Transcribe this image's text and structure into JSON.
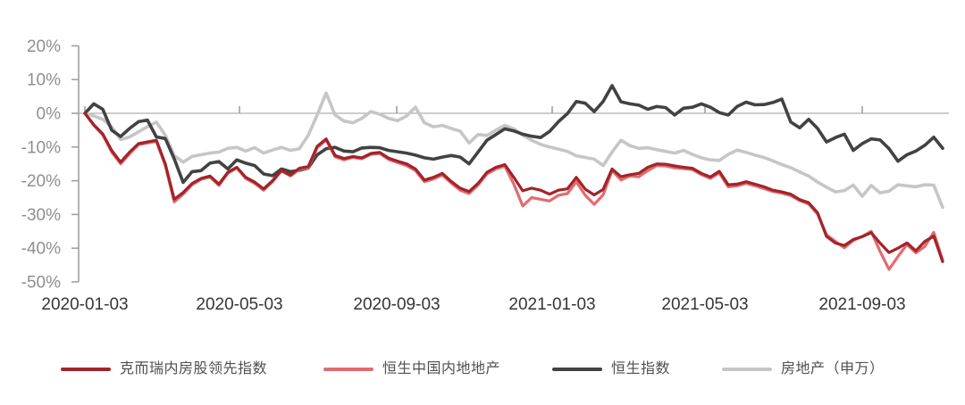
{
  "chart_data": {
    "type": "line",
    "title": "",
    "x_axis": {
      "tick_labels": [
        "2020-01-03",
        "2020-05-03",
        "2020-09-03",
        "2021-01-03",
        "2021-05-03",
        "2021-09-03"
      ],
      "tick_week_positions": [
        0,
        17.3,
        34.9,
        52.3,
        69.4,
        87.0
      ],
      "frequency": "weekly",
      "points_per_series": 97
    },
    "y_axis": {
      "tick_labels": [
        "20%",
        "10%",
        "0%",
        "-10%",
        "-20%",
        "-30%",
        "-40%",
        "-50%"
      ],
      "tick_values": [
        20,
        10,
        0,
        -10,
        -20,
        -30,
        -40,
        -50
      ],
      "ylim": [
        -50,
        20
      ],
      "unit": "%"
    },
    "grid": "zero-line-only",
    "legend_position": "bottom",
    "series": [
      {
        "name": "克而瑞内房股领先指数",
        "color": "#a1242a",
        "values": [
          0,
          -3.4,
          -6.1,
          -11.0,
          -14.5,
          -11.5,
          -9.0,
          -8.5,
          -8.0,
          -15.0,
          -25.5,
          -23.5,
          -20.8,
          -19.3,
          -18.6,
          -21.0,
          -17.5,
          -16.0,
          -19.0,
          -20.4,
          -22.4,
          -20.0,
          -16.9,
          -18.3,
          -16.3,
          -15.8,
          -9.8,
          -7.6,
          -12.5,
          -13.4,
          -12.8,
          -13.2,
          -11.9,
          -11.6,
          -13.3,
          -14.2,
          -15.0,
          -16.5,
          -19.8,
          -19.0,
          -17.8,
          -20.2,
          -22.2,
          -23.2,
          -20.8,
          -17.5,
          -16.0,
          -15.2,
          -19.0,
          -23.0,
          -22.2,
          -22.8,
          -24.0,
          -22.8,
          -22.4,
          -19.0,
          -22.5,
          -24.2,
          -22.6,
          -16.5,
          -18.8,
          -18.2,
          -17.8,
          -16.0,
          -15.0,
          -15.1,
          -15.6,
          -16.0,
          -16.3,
          -17.8,
          -18.9,
          -17.2,
          -21.2,
          -21.0,
          -20.3,
          -21.0,
          -21.8,
          -22.8,
          -23.3,
          -24.0,
          -25.6,
          -26.5,
          -29.5,
          -36.5,
          -38.5,
          -39.2,
          -37.4,
          -36.6,
          -35.4,
          -38.5,
          -41.3,
          -40.0,
          -38.4,
          -40.8,
          -38.0,
          -36.4,
          -44.0
        ]
      },
      {
        "name": "恒生中国内地地产",
        "color": "#e26b70",
        "values": [
          0,
          -3.6,
          -6.4,
          -11.5,
          -15.0,
          -12.0,
          -9.3,
          -8.8,
          -8.3,
          -15.5,
          -26.3,
          -24.0,
          -21.2,
          -19.6,
          -18.9,
          -21.4,
          -17.8,
          -16.2,
          -19.3,
          -20.8,
          -22.8,
          -20.3,
          -17.1,
          -18.6,
          -16.6,
          -16.1,
          -10.2,
          -7.9,
          -12.9,
          -13.8,
          -13.1,
          -13.5,
          -12.2,
          -11.9,
          -13.7,
          -14.6,
          -15.5,
          -17.0,
          -20.3,
          -19.5,
          -18.3,
          -20.7,
          -22.8,
          -23.8,
          -21.3,
          -18.0,
          -16.5,
          -15.7,
          -21.0,
          -27.5,
          -25.0,
          -25.5,
          -26.0,
          -24.3,
          -23.8,
          -20.3,
          -24.3,
          -27.0,
          -24.2,
          -17.0,
          -19.8,
          -18.6,
          -18.8,
          -17.0,
          -15.5,
          -15.6,
          -16.2,
          -16.4,
          -16.7,
          -18.2,
          -19.3,
          -17.7,
          -21.8,
          -21.5,
          -20.8,
          -21.5,
          -22.3,
          -23.2,
          -23.7,
          -24.4,
          -25.9,
          -26.9,
          -29.9,
          -36.0,
          -38.0,
          -39.9,
          -37.7,
          -36.5,
          -35.0,
          -41.0,
          -46.3,
          -42.5,
          -38.9,
          -41.4,
          -39.5,
          -35.3,
          -43.6
        ]
      },
      {
        "name": "恒生指数",
        "color": "#424242",
        "values": [
          0,
          2.8,
          1.2,
          -5.0,
          -6.9,
          -4.5,
          -2.5,
          -2.0,
          -7.0,
          -7.5,
          -13.5,
          -20.5,
          -17.3,
          -17.0,
          -14.8,
          -14.3,
          -16.5,
          -13.8,
          -14.8,
          -15.5,
          -18.0,
          -18.5,
          -16.5,
          -17.3,
          -16.9,
          -16.2,
          -12.3,
          -10.5,
          -10.1,
          -11.2,
          -11.4,
          -10.3,
          -10.1,
          -10.2,
          -11.0,
          -11.4,
          -11.8,
          -12.4,
          -13.2,
          -13.6,
          -13.0,
          -12.5,
          -13.0,
          -15.0,
          -11.5,
          -8.0,
          -6.3,
          -4.6,
          -5.2,
          -6.2,
          -6.8,
          -7.2,
          -5.4,
          -2.5,
          -0.1,
          3.5,
          3.0,
          0.5,
          3.5,
          8.2,
          3.4,
          2.8,
          2.4,
          1.2,
          2.0,
          1.7,
          -0.5,
          1.5,
          1.8,
          2.8,
          1.8,
          0.2,
          -0.5,
          2.0,
          3.3,
          2.5,
          2.6,
          3.2,
          4.2,
          -2.6,
          -4.3,
          -1.8,
          -4.5,
          -8.5,
          -7.2,
          -6.2,
          -11.0,
          -9.0,
          -7.6,
          -7.9,
          -10.5,
          -14.2,
          -12.3,
          -11.2,
          -9.5,
          -7.1,
          -10.4
        ]
      },
      {
        "name": "房地产（申万）",
        "color": "#c6c6c6",
        "values": [
          0,
          -0.8,
          -1.8,
          -4.0,
          -7.8,
          -7.0,
          -5.5,
          -4.0,
          -2.6,
          -6.5,
          -12.5,
          -14.5,
          -12.8,
          -12.3,
          -11.8,
          -11.5,
          -10.4,
          -10.1,
          -11.2,
          -10.2,
          -11.8,
          -10.9,
          -10.1,
          -11.0,
          -10.5,
          -6.5,
          -0.5,
          6.0,
          -0.5,
          -2.3,
          -2.8,
          -1.5,
          0.5,
          -0.3,
          -1.5,
          -2.2,
          -0.8,
          1.8,
          -2.8,
          -4.0,
          -3.6,
          -4.5,
          -5.3,
          -8.8,
          -6.3,
          -6.6,
          -5.0,
          -3.6,
          -4.6,
          -6.5,
          -8.0,
          -9.2,
          -10.0,
          -10.6,
          -11.3,
          -12.6,
          -13.1,
          -13.6,
          -15.5,
          -11.5,
          -8.0,
          -9.6,
          -10.4,
          -10.2,
          -10.8,
          -11.3,
          -11.8,
          -11.0,
          -12.2,
          -13.2,
          -13.8,
          -14.0,
          -12.2,
          -10.9,
          -11.6,
          -12.4,
          -13.1,
          -14.1,
          -15.2,
          -16.1,
          -17.4,
          -18.6,
          -20.4,
          -21.9,
          -23.3,
          -22.9,
          -21.3,
          -24.6,
          -21.4,
          -23.6,
          -23.1,
          -21.2,
          -21.5,
          -21.8,
          -21.2,
          -21.3,
          -27.9
        ]
      }
    ],
    "style": {
      "axis_color": "#9b9b9b",
      "y_label_color": "#8f8f8f",
      "x_label_color": "#363636",
      "background": "#ffffff"
    }
  }
}
